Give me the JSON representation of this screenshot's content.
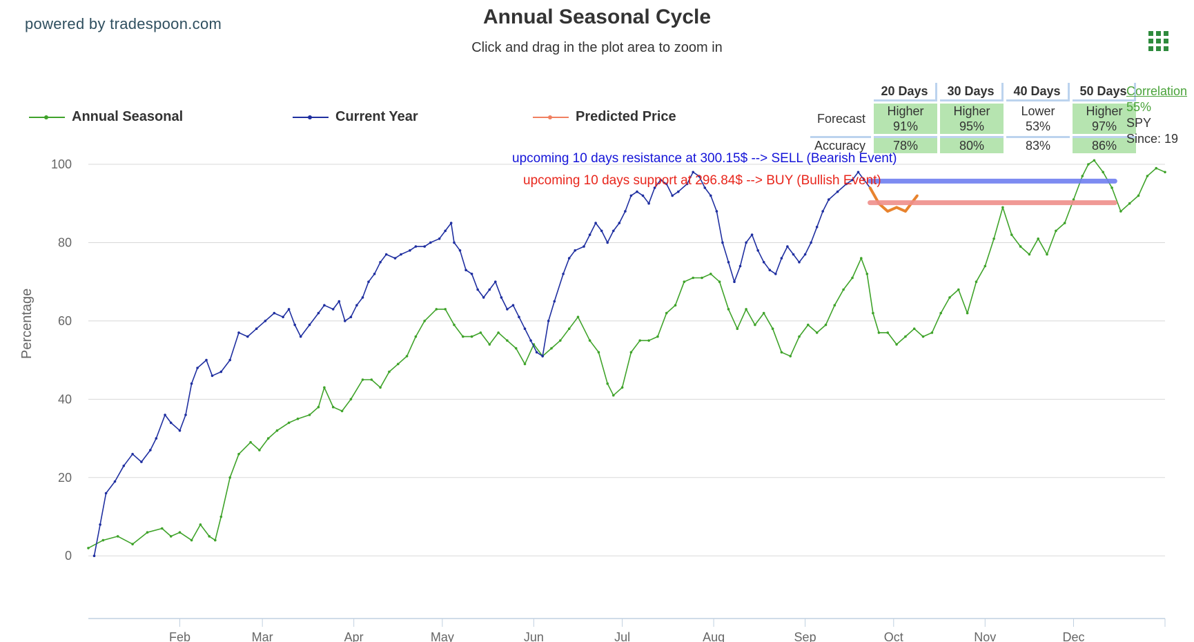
{
  "brand": "powered by tradespoon.com",
  "title": "Annual Seasonal Cycle",
  "subtitle": "Click and drag in the plot area to zoom in",
  "menu_icon": "grid-menu-icon",
  "legend": [
    {
      "name": "Annual Seasonal",
      "color": "#3fa32a"
    },
    {
      "name": "Current Year",
      "color": "#1f2fa0"
    },
    {
      "name": "Predicted Price",
      "color": "#f08060"
    }
  ],
  "forecast_table": {
    "headers": [
      "20 Days",
      "30 Days",
      "40 Days",
      "50 Days"
    ],
    "forecast_label": "Forecast",
    "accuracy_label": "Accuracy",
    "forecast": [
      {
        "direction": "Higher",
        "pct": "91%",
        "highlight": true
      },
      {
        "direction": "Higher",
        "pct": "95%",
        "highlight": true
      },
      {
        "direction": "Lower",
        "pct": "53%",
        "highlight": false
      },
      {
        "direction": "Higher",
        "pct": "97%",
        "highlight": true
      }
    ],
    "accuracy": [
      {
        "pct": "78%",
        "highlight": true
      },
      {
        "pct": "80%",
        "highlight": true
      },
      {
        "pct": "83%",
        "highlight": false
      },
      {
        "pct": "86%",
        "highlight": true
      }
    ]
  },
  "correlation": {
    "link": "Correlation",
    "pct": "55%",
    "ticker": "SPY",
    "since": "Since: 19"
  },
  "annotations": {
    "resistance": "upcoming 10 days resistance at 300.15$ --> SELL (Bearish Event)",
    "support": "upcoming 10 days support at 296.84$ --> BUY (Bullish Event)"
  },
  "chart_data": {
    "type": "line",
    "ylabel": "Percentage",
    "ylim": [
      -16,
      100
    ],
    "xlim": [
      0,
      365
    ],
    "y_ticks": [
      0,
      20,
      40,
      60,
      80,
      100
    ],
    "x_ticks": [
      {
        "label": "Feb",
        "day": 31
      },
      {
        "label": "Mar",
        "day": 59
      },
      {
        "label": "Apr",
        "day": 90
      },
      {
        "label": "May",
        "day": 120
      },
      {
        "label": "Jun",
        "day": 151
      },
      {
        "label": "Jul",
        "day": 181
      },
      {
        "label": "Aug",
        "day": 212
      },
      {
        "label": "Sep",
        "day": 243
      },
      {
        "label": "Oct",
        "day": 273
      },
      {
        "label": "Nov",
        "day": 304
      },
      {
        "label": "Dec",
        "day": 334
      }
    ],
    "series": [
      {
        "name": "Annual Seasonal",
        "color": "#3fa32a",
        "points": [
          [
            0,
            2
          ],
          [
            5,
            4
          ],
          [
            10,
            5
          ],
          [
            15,
            3
          ],
          [
            20,
            6
          ],
          [
            25,
            7
          ],
          [
            28,
            5
          ],
          [
            31,
            6
          ],
          [
            35,
            4
          ],
          [
            38,
            8
          ],
          [
            41,
            5
          ],
          [
            43,
            4
          ],
          [
            45,
            10
          ],
          [
            48,
            20
          ],
          [
            51,
            26
          ],
          [
            55,
            29
          ],
          [
            58,
            27
          ],
          [
            61,
            30
          ],
          [
            64,
            32
          ],
          [
            68,
            34
          ],
          [
            71,
            35
          ],
          [
            75,
            36
          ],
          [
            78,
            38
          ],
          [
            80,
            43
          ],
          [
            83,
            38
          ],
          [
            86,
            37
          ],
          [
            89,
            40
          ],
          [
            93,
            45
          ],
          [
            96,
            45
          ],
          [
            99,
            43
          ],
          [
            102,
            47
          ],
          [
            105,
            49
          ],
          [
            108,
            51
          ],
          [
            111,
            56
          ],
          [
            114,
            60
          ],
          [
            118,
            63
          ],
          [
            121,
            63
          ],
          [
            124,
            59
          ],
          [
            127,
            56
          ],
          [
            130,
            56
          ],
          [
            133,
            57
          ],
          [
            136,
            54
          ],
          [
            139,
            57
          ],
          [
            142,
            55
          ],
          [
            145,
            53
          ],
          [
            148,
            49
          ],
          [
            151,
            54
          ],
          [
            154,
            51
          ],
          [
            157,
            53
          ],
          [
            160,
            55
          ],
          [
            163,
            58
          ],
          [
            166,
            61
          ],
          [
            170,
            55
          ],
          [
            173,
            52
          ],
          [
            176,
            44
          ],
          [
            178,
            41
          ],
          [
            181,
            43
          ],
          [
            184,
            52
          ],
          [
            187,
            55
          ],
          [
            190,
            55
          ],
          [
            193,
            56
          ],
          [
            196,
            62
          ],
          [
            199,
            64
          ],
          [
            202,
            70
          ],
          [
            205,
            71
          ],
          [
            208,
            71
          ],
          [
            211,
            72
          ],
          [
            214,
            70
          ],
          [
            217,
            63
          ],
          [
            220,
            58
          ],
          [
            223,
            63
          ],
          [
            226,
            59
          ],
          [
            229,
            62
          ],
          [
            232,
            58
          ],
          [
            235,
            52
          ],
          [
            238,
            51
          ],
          [
            241,
            56
          ],
          [
            244,
            59
          ],
          [
            247,
            57
          ],
          [
            250,
            59
          ],
          [
            253,
            64
          ],
          [
            256,
            68
          ],
          [
            259,
            71
          ],
          [
            262,
            76
          ],
          [
            264,
            72
          ],
          [
            266,
            62
          ],
          [
            268,
            57
          ],
          [
            271,
            57
          ],
          [
            274,
            54
          ],
          [
            277,
            56
          ],
          [
            280,
            58
          ],
          [
            283,
            56
          ],
          [
            286,
            57
          ],
          [
            289,
            62
          ],
          [
            292,
            66
          ],
          [
            295,
            68
          ],
          [
            298,
            62
          ],
          [
            301,
            70
          ],
          [
            304,
            74
          ],
          [
            307,
            81
          ],
          [
            310,
            89
          ],
          [
            313,
            82
          ],
          [
            316,
            79
          ],
          [
            319,
            77
          ],
          [
            322,
            81
          ],
          [
            325,
            77
          ],
          [
            328,
            83
          ],
          [
            331,
            85
          ],
          [
            334,
            91
          ],
          [
            337,
            97
          ],
          [
            339,
            100
          ],
          [
            341,
            101
          ],
          [
            344,
            98
          ],
          [
            347,
            94
          ],
          [
            350,
            88
          ],
          [
            353,
            90
          ],
          [
            356,
            92
          ],
          [
            359,
            97
          ],
          [
            362,
            99
          ],
          [
            365,
            98
          ]
        ]
      },
      {
        "name": "Current Year",
        "color": "#1f2fa0",
        "points": [
          [
            2,
            0
          ],
          [
            4,
            8
          ],
          [
            6,
            16
          ],
          [
            9,
            19
          ],
          [
            12,
            23
          ],
          [
            15,
            26
          ],
          [
            18,
            24
          ],
          [
            21,
            27
          ],
          [
            23,
            30
          ],
          [
            26,
            36
          ],
          [
            28,
            34
          ],
          [
            31,
            32
          ],
          [
            33,
            36
          ],
          [
            35,
            44
          ],
          [
            37,
            48
          ],
          [
            40,
            50
          ],
          [
            42,
            46
          ],
          [
            45,
            47
          ],
          [
            48,
            50
          ],
          [
            51,
            57
          ],
          [
            54,
            56
          ],
          [
            57,
            58
          ],
          [
            60,
            60
          ],
          [
            63,
            62
          ],
          [
            66,
            61
          ],
          [
            68,
            63
          ],
          [
            70,
            59
          ],
          [
            72,
            56
          ],
          [
            75,
            59
          ],
          [
            78,
            62
          ],
          [
            80,
            64
          ],
          [
            83,
            63
          ],
          [
            85,
            65
          ],
          [
            87,
            60
          ],
          [
            89,
            61
          ],
          [
            91,
            64
          ],
          [
            93,
            66
          ],
          [
            95,
            70
          ],
          [
            97,
            72
          ],
          [
            99,
            75
          ],
          [
            101,
            77
          ],
          [
            104,
            76
          ],
          [
            106,
            77
          ],
          [
            109,
            78
          ],
          [
            111,
            79
          ],
          [
            114,
            79
          ],
          [
            116,
            80
          ],
          [
            119,
            81
          ],
          [
            121,
            83
          ],
          [
            123,
            85
          ],
          [
            124,
            80
          ],
          [
            126,
            78
          ],
          [
            128,
            73
          ],
          [
            130,
            72
          ],
          [
            132,
            68
          ],
          [
            134,
            66
          ],
          [
            136,
            68
          ],
          [
            138,
            70
          ],
          [
            140,
            66
          ],
          [
            142,
            63
          ],
          [
            144,
            64
          ],
          [
            146,
            61
          ],
          [
            148,
            58
          ],
          [
            150,
            55
          ],
          [
            152,
            52
          ],
          [
            154,
            51
          ],
          [
            156,
            60
          ],
          [
            158,
            65
          ],
          [
            161,
            72
          ],
          [
            163,
            76
          ],
          [
            165,
            78
          ],
          [
            168,
            79
          ],
          [
            170,
            82
          ],
          [
            172,
            85
          ],
          [
            174,
            83
          ],
          [
            176,
            80
          ],
          [
            178,
            83
          ],
          [
            180,
            85
          ],
          [
            182,
            88
          ],
          [
            184,
            92
          ],
          [
            186,
            93
          ],
          [
            188,
            92
          ],
          [
            190,
            90
          ],
          [
            192,
            94
          ],
          [
            194,
            96
          ],
          [
            196,
            95
          ],
          [
            198,
            92
          ],
          [
            200,
            93
          ],
          [
            203,
            95
          ],
          [
            205,
            98
          ],
          [
            207,
            97
          ],
          [
            209,
            94
          ],
          [
            211,
            92
          ],
          [
            213,
            88
          ],
          [
            215,
            80
          ],
          [
            217,
            75
          ],
          [
            219,
            70
          ],
          [
            221,
            74
          ],
          [
            223,
            80
          ],
          [
            225,
            82
          ],
          [
            227,
            78
          ],
          [
            229,
            75
          ],
          [
            231,
            73
          ],
          [
            233,
            72
          ],
          [
            235,
            76
          ],
          [
            237,
            79
          ],
          [
            239,
            77
          ],
          [
            241,
            75
          ],
          [
            243,
            77
          ],
          [
            245,
            80
          ],
          [
            247,
            84
          ],
          [
            249,
            88
          ],
          [
            251,
            91
          ],
          [
            254,
            93
          ],
          [
            257,
            95
          ],
          [
            259,
            96
          ],
          [
            261,
            98
          ],
          [
            263,
            96
          ],
          [
            265,
            94
          ]
        ]
      },
      {
        "name": "Predicted Price",
        "color": "#e8832e",
        "points": [
          [
            265,
            94
          ],
          [
            268,
            90
          ],
          [
            271,
            88
          ],
          [
            274,
            89
          ],
          [
            277,
            88
          ],
          [
            279,
            90
          ],
          [
            281,
            92
          ]
        ]
      }
    ],
    "levels": [
      {
        "name": "resistance",
        "value": 95.7,
        "from": 265,
        "to": 348,
        "color": "#6f7ff0"
      },
      {
        "name": "support",
        "value": 90.2,
        "from": 265,
        "to": 348,
        "color": "#ef8f8a"
      }
    ]
  }
}
